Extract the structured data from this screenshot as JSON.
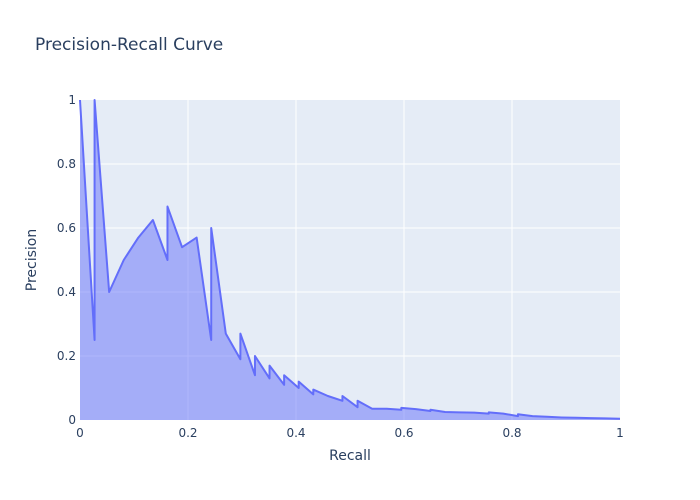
{
  "chart_data": {
    "type": "area",
    "title": "Precision-Recall Curve",
    "xlabel": "Recall",
    "ylabel": "Precision",
    "xlim": [
      0,
      1
    ],
    "ylim": [
      0,
      1
    ],
    "xticks": [
      "0",
      "0.2",
      "0.4",
      "0.6",
      "0.8",
      "1"
    ],
    "yticks": [
      "0",
      "0.2",
      "0.4",
      "0.6",
      "0.8",
      "1"
    ],
    "grid": true,
    "colors": {
      "line": "#636efa",
      "fill": "rgba(99,110,250,0.5)",
      "plot_background": "#e5ecf6",
      "grid": "#ffffff",
      "text": "#2a3f5f"
    },
    "series": [
      {
        "x": [
          0.0,
          0.027,
          0.027,
          0.054,
          0.081,
          0.108,
          0.135,
          0.162,
          0.162,
          0.189,
          0.216,
          0.243,
          0.243,
          0.27,
          0.297,
          0.297,
          0.324,
          0.324,
          0.351,
          0.351,
          0.378,
          0.378,
          0.405,
          0.405,
          0.432,
          0.432,
          0.459,
          0.486,
          0.486,
          0.514,
          0.514,
          0.541,
          0.568,
          0.595,
          0.595,
          0.622,
          0.649,
          0.649,
          0.676,
          0.703,
          0.73,
          0.757,
          0.757,
          0.784,
          0.811,
          0.811,
          0.838,
          0.865,
          0.892,
          0.919,
          0.946,
          0.973,
          1.0
        ],
        "y": [
          1.0,
          0.25,
          1.0,
          0.4,
          0.5,
          0.57,
          0.625,
          0.5,
          0.667,
          0.54,
          0.57,
          0.25,
          0.6,
          0.27,
          0.19,
          0.27,
          0.14,
          0.2,
          0.13,
          0.17,
          0.11,
          0.14,
          0.1,
          0.12,
          0.08,
          0.095,
          0.075,
          0.06,
          0.075,
          0.04,
          0.06,
          0.035,
          0.035,
          0.032,
          0.038,
          0.034,
          0.028,
          0.032,
          0.025,
          0.024,
          0.023,
          0.02,
          0.024,
          0.02,
          0.012,
          0.018,
          0.012,
          0.01,
          0.008,
          0.007,
          0.006,
          0.005,
          0.004
        ]
      }
    ]
  }
}
